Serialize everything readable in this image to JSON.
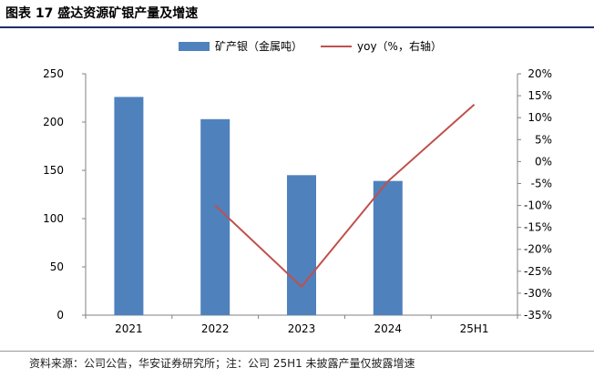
{
  "figure": {
    "title": "图表 17  盛达资源矿银产量及增速",
    "source": "资料来源：公司公告，华安证券研究所；注：公司 25H1 未披露产量仅披露增速"
  },
  "colors": {
    "bar": "#4f81bd",
    "line": "#c0504d",
    "title_rule": "#1f2f6b",
    "axis": "#808080"
  },
  "chart_data": {
    "type": "bar",
    "categories": [
      "2021",
      "2022",
      "2023",
      "2024",
      "25H1"
    ],
    "series": [
      {
        "name": "矿产银（金属吨）",
        "type": "bar",
        "axis": "left",
        "values": [
          226,
          203,
          145,
          139,
          null
        ]
      },
      {
        "name": "yoy（%，右轴）",
        "type": "line",
        "axis": "right",
        "values": [
          null,
          -10,
          -28.5,
          -4.5,
          13
        ]
      }
    ],
    "ylim": [
      0,
      250
    ],
    "yticks": [
      0,
      50,
      100,
      150,
      200,
      250
    ],
    "y2lim": [
      -35,
      20
    ],
    "y2ticks": [
      "20%",
      "15%",
      "10%",
      "5%",
      "0%",
      "-5%",
      "-10%",
      "-15%",
      "-20%",
      "-25%",
      "-30%",
      "-35%"
    ],
    "y2tick_values": [
      20,
      15,
      10,
      5,
      0,
      -5,
      -10,
      -15,
      -20,
      -25,
      -30,
      -35
    ],
    "legend_position": "top",
    "grid": false
  }
}
